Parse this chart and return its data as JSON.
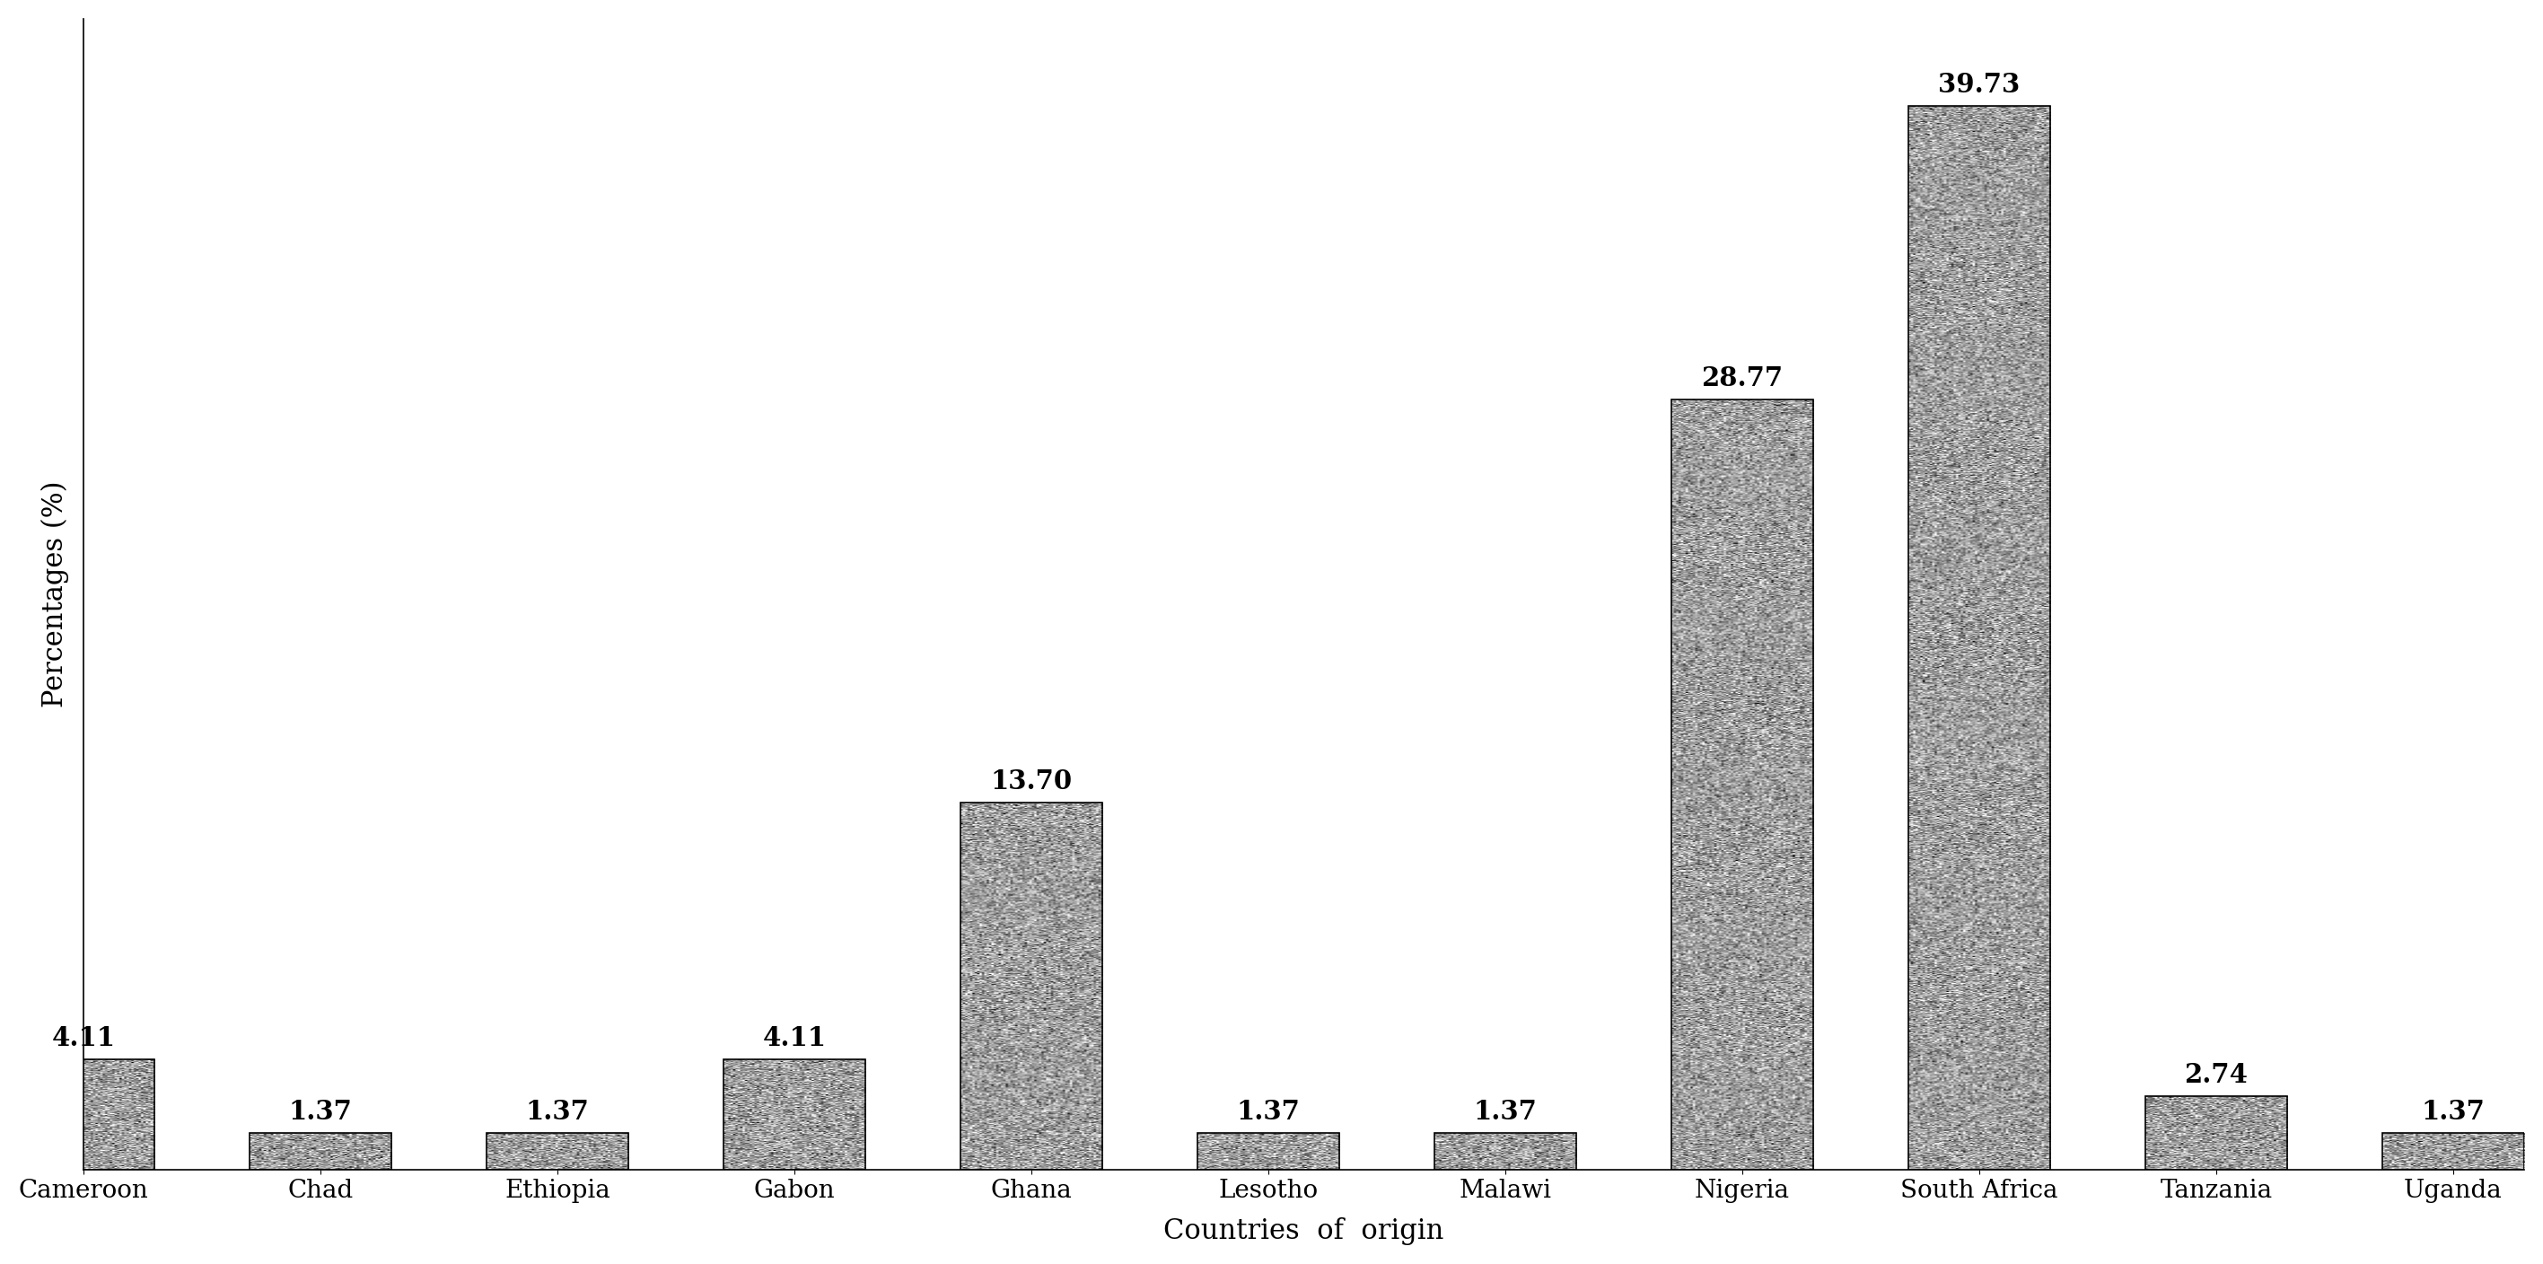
{
  "categories": [
    "Cameroon",
    "Chad",
    "Ethiopia",
    "Gabon",
    "Ghana",
    "Lesotho",
    "Malawi",
    "Nigeria",
    "South Africa",
    "Tanzania",
    "Uganda"
  ],
  "values": [
    4.11,
    1.37,
    1.37,
    4.11,
    13.7,
    1.37,
    1.37,
    28.77,
    39.73,
    2.74,
    1.37
  ],
  "edge_color": "#000000",
  "xlabel": "Countries  of  origin",
  "ylabel": "Percentages (%)",
  "ylim": [
    0,
    43
  ],
  "bar_width": 0.6,
  "tick_fontsize": 20,
  "value_fontsize": 21,
  "background_color": "#ffffff",
  "xlabel_fontsize": 22,
  "ylabel_fontsize": 22,
  "noise_mean": 0.62,
  "noise_std": 0.18
}
